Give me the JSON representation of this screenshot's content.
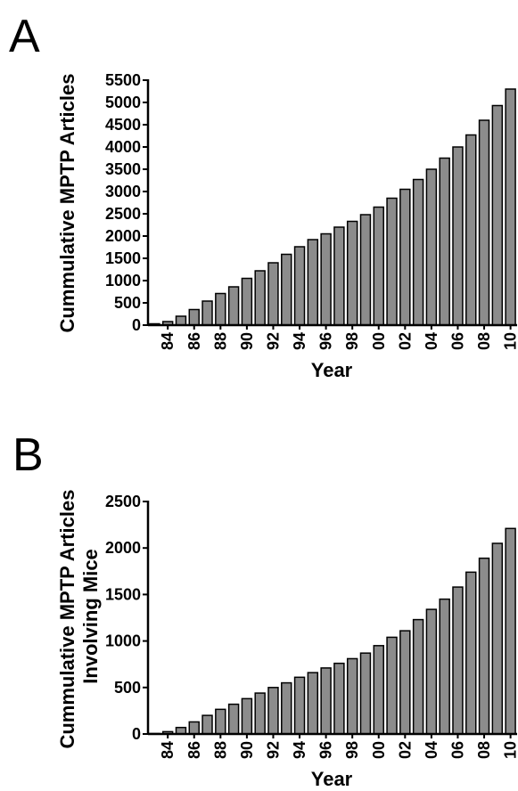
{
  "chart_data": [
    {
      "panel": "A",
      "type": "bar",
      "ylabel": "Cummulative MPTP Articles",
      "xlabel": "Year",
      "ylim": [
        0,
        5500
      ],
      "yticks": [
        0,
        500,
        1000,
        1500,
        2000,
        2500,
        3000,
        3500,
        4000,
        4500,
        5000,
        5500
      ],
      "categories": [
        "83",
        "84",
        "85",
        "86",
        "87",
        "88",
        "89",
        "90",
        "91",
        "92",
        "93",
        "94",
        "95",
        "96",
        "97",
        "98",
        "99",
        "00",
        "01",
        "02",
        "03",
        "04",
        "05",
        "06",
        "07",
        "08",
        "09",
        "10"
      ],
      "xtick_labels": [
        "84",
        "86",
        "88",
        "90",
        "92",
        "94",
        "96",
        "98",
        "00",
        "02",
        "04",
        "06",
        "08",
        "10"
      ],
      "values": [
        30,
        80,
        200,
        350,
        540,
        710,
        860,
        1050,
        1220,
        1400,
        1590,
        1760,
        1920,
        2050,
        2200,
        2330,
        2480,
        2650,
        2850,
        3050,
        3270,
        3500,
        3750,
        4000,
        4270,
        4600,
        4930,
        5300
      ]
    },
    {
      "panel": "B",
      "type": "bar",
      "ylabel": "Cummulative MPTP Articles Involving Mice",
      "ylabel_lines": [
        "Cummulative MPTP Articles",
        "Involving Mice"
      ],
      "xlabel": "Year",
      "ylim": [
        0,
        2500
      ],
      "yticks": [
        0,
        500,
        1000,
        1500,
        2000,
        2500
      ],
      "categories": [
        "83",
        "84",
        "85",
        "86",
        "87",
        "88",
        "89",
        "90",
        "91",
        "92",
        "93",
        "94",
        "95",
        "96",
        "97",
        "98",
        "99",
        "00",
        "01",
        "02",
        "03",
        "04",
        "05",
        "06",
        "07",
        "08",
        "09",
        "10"
      ],
      "xtick_labels": [
        "84",
        "86",
        "88",
        "90",
        "92",
        "94",
        "96",
        "98",
        "00",
        "02",
        "04",
        "06",
        "08",
        "10"
      ],
      "values": [
        5,
        25,
        70,
        130,
        200,
        265,
        320,
        380,
        440,
        500,
        550,
        610,
        660,
        710,
        760,
        810,
        870,
        950,
        1040,
        1110,
        1230,
        1340,
        1450,
        1580,
        1740,
        1890,
        2050,
        2210
      ]
    }
  ]
}
